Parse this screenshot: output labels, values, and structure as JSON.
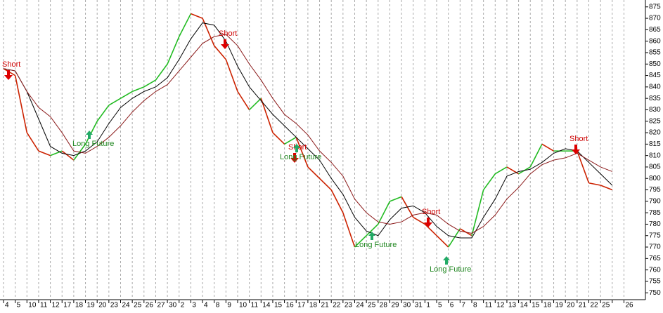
{
  "chart_data": {
    "type": "line",
    "categories": [
      "4",
      "5",
      "10",
      "11",
      "12",
      "17",
      "18",
      "19",
      "20",
      "23",
      "24",
      "25",
      "26",
      "27",
      "30",
      "2",
      "3",
      "4",
      "8",
      "9",
      "10",
      "11",
      "14",
      "15",
      "16",
      "17",
      "18",
      "21",
      "22",
      "23",
      "24",
      "25",
      "28",
      "29",
      "30",
      "31",
      "1",
      "5",
      "6",
      "7",
      "8",
      "11",
      "12",
      "13",
      "14",
      "15",
      "18",
      "19",
      "20",
      "21",
      "22",
      "25",
      null,
      "26"
    ],
    "series": [
      {
        "color": "#22bb22",
        "down_color": "#cc2200",
        "values": [
          848,
          845,
          820,
          812,
          810,
          812,
          808,
          815,
          825,
          832,
          835,
          838,
          840,
          843,
          850,
          862,
          872,
          870,
          858,
          852,
          838,
          830,
          835,
          820,
          815,
          818,
          805,
          800,
          795,
          785,
          770,
          775,
          780,
          790,
          792,
          783,
          780,
          775,
          770,
          778,
          775,
          795,
          802,
          805,
          802,
          805,
          815,
          812,
          812,
          812,
          798,
          797,
          795,
          null
        ]
      },
      {
        "color": "#000000",
        "values": [
          848,
          847,
          838,
          826,
          814,
          811,
          810,
          812,
          816,
          824,
          831,
          835,
          838,
          840,
          844,
          852,
          861,
          868,
          867,
          860,
          849,
          840,
          834,
          828,
          823,
          818,
          813,
          808,
          800,
          793,
          783,
          777,
          775,
          782,
          787,
          788,
          785,
          779,
          775,
          774,
          774,
          783,
          791,
          801,
          803,
          804,
          807,
          811,
          813,
          812,
          807,
          802,
          797,
          null
        ]
      },
      {
        "color": "#8b1a1a",
        "values": [
          848,
          847,
          838,
          831,
          827,
          820,
          812,
          811,
          814,
          818,
          823,
          829,
          834,
          838,
          841,
          847,
          853,
          859,
          862,
          863,
          858,
          850,
          843,
          835,
          828,
          824,
          819,
          812,
          807,
          801,
          791,
          785,
          781,
          780,
          781,
          784,
          785,
          784,
          780,
          777,
          776,
          779,
          784,
          791,
          796,
          802,
          806,
          808,
          809,
          811,
          808,
          805,
          803,
          null
        ]
      }
    ],
    "annotations": [
      "Short",
      "Short",
      "Short",
      "Short",
      "Short",
      "Long Future",
      "Long Future",
      "Long Future",
      "Long Future"
    ],
    "ylim": [
      747,
      878
    ],
    "yticks": [
      750,
      755,
      760,
      765,
      770,
      775,
      780,
      785,
      790,
      795,
      800,
      805,
      810,
      815,
      820,
      825,
      830,
      835,
      840,
      845,
      850,
      855,
      860,
      865,
      870,
      875
    ],
    "grid": true
  }
}
